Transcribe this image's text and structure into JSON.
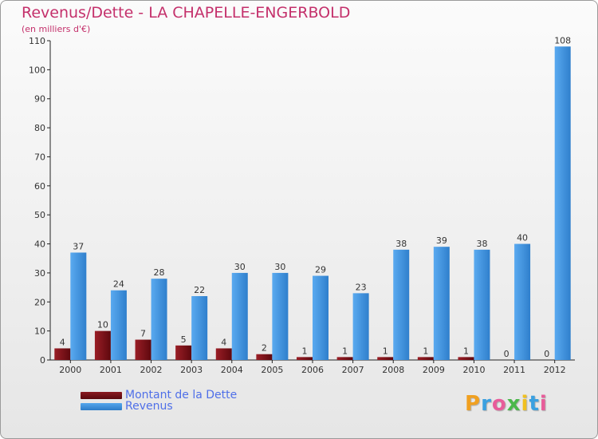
{
  "title": "Revenus/Dette - LA CHAPELLE-ENGERBOLD",
  "subtitle": "(en milliers d'€)",
  "legend": {
    "dette": "Montant de la Dette",
    "revenus": "Revenus"
  },
  "logo": {
    "letters": [
      "P",
      "r",
      "o",
      "x",
      "i",
      "t",
      "i"
    ],
    "colors": [
      "#f0a020",
      "#3aa0e0",
      "#e85c9a",
      "#4ab84a",
      "#f0c020",
      "#3aa0e0",
      "#e85c9a"
    ]
  },
  "colors": {
    "dette": "#7a0e14",
    "revenus": "#3d8fdc",
    "title": "#c4306b"
  },
  "chart_data": {
    "type": "bar",
    "categories": [
      "2000",
      "2001",
      "2002",
      "2003",
      "2004",
      "2005",
      "2006",
      "2007",
      "2008",
      "2009",
      "2010",
      "2011",
      "2012"
    ],
    "series": [
      {
        "name": "Montant de la Dette",
        "values": [
          4,
          10,
          7,
          5,
          4,
          2,
          1,
          1,
          1,
          1,
          1,
          0,
          0
        ]
      },
      {
        "name": "Revenus",
        "values": [
          37,
          24,
          28,
          22,
          30,
          30,
          29,
          23,
          38,
          39,
          38,
          40,
          108
        ]
      }
    ],
    "ylim": [
      0,
      110
    ],
    "yticks": [
      0,
      10,
      20,
      30,
      40,
      50,
      60,
      70,
      80,
      90,
      100,
      110
    ],
    "grid": false,
    "legend_position": "bottom-left"
  }
}
